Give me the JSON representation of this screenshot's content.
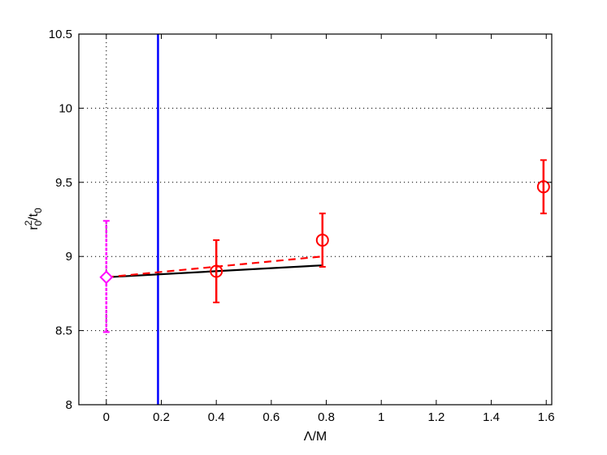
{
  "chart_data": {
    "type": "scatter",
    "title": "",
    "xlabel": "Λ/M",
    "ylabel": {
      "base": "r",
      "sup": "2",
      "sub": "0",
      "rest": "/t",
      "sub2": "0"
    },
    "xlim": [
      -0.1,
      1.62
    ],
    "ylim": [
      8,
      10.5
    ],
    "xticks": [
      0,
      0.2,
      0.4,
      0.6,
      0.8,
      1,
      1.2,
      1.4,
      1.6
    ],
    "xtick_labels": [
      "0",
      "0.2",
      "0.4",
      "0.6",
      "0.8",
      "1",
      "1.2",
      "1.4",
      "1.6"
    ],
    "yticks": [
      8,
      8.5,
      9,
      9.5,
      10,
      10.5
    ],
    "ytick_labels": [
      "8",
      "8.5",
      "9",
      "9.5",
      "10",
      "10.5"
    ],
    "grid": "dotted",
    "legend": "none",
    "colors": {
      "data": "#ff0000",
      "extrapolated": "#ff00ff",
      "vertical_line": "#0000ff",
      "fit_solid": "#000000",
      "fit_dashed": "#ff0000",
      "zero_line": "#000000"
    },
    "series": [
      {
        "marker": "circle",
        "points": [
          {
            "x": 0.4,
            "y": 8.9,
            "err_low": 8.69,
            "err_high": 9.11
          },
          {
            "x": 0.786,
            "y": 9.11,
            "err_low": 8.93,
            "err_high": 9.29
          },
          {
            "x": 1.59,
            "y": 9.47,
            "err_low": 9.29,
            "err_high": 9.65
          }
        ]
      },
      {
        "marker": "diamond",
        "points": [
          {
            "x": 0,
            "y": 8.86,
            "err_low": 8.49,
            "err_high": 9.24
          }
        ]
      }
    ],
    "fit_lines": [
      {
        "style": "solid",
        "x": [
          0,
          0.786
        ],
        "y": [
          8.86,
          8.94
        ]
      },
      {
        "style": "dashed",
        "x": [
          0,
          0.786
        ],
        "y": [
          8.86,
          9.0
        ]
      }
    ],
    "vertical_lines": [
      {
        "style": "solid",
        "x": 0.188
      },
      {
        "style": "dotted",
        "x": 0
      }
    ]
  }
}
